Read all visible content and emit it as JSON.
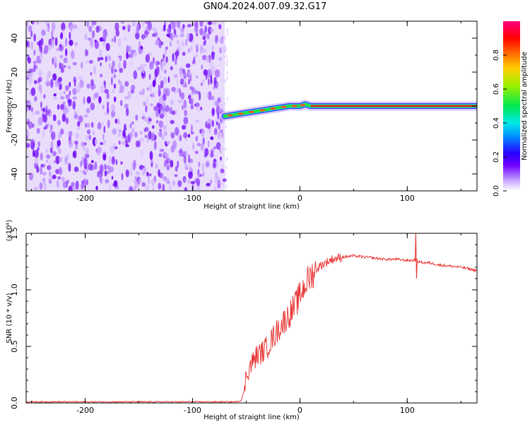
{
  "title": "GN04.2024.007.09.32.G17",
  "chart_data": [
    {
      "type": "heatmap",
      "xlabel": "Height of straight line (km)",
      "ylabel": "Frequency (Hz)",
      "xlim": [
        -255,
        165
      ],
      "ylim": [
        -50,
        50
      ],
      "xticks": [
        -200,
        -100,
        0,
        100
      ],
      "yticks": [
        -40,
        -20,
        0,
        20,
        40
      ],
      "colorbar": {
        "label": "Normalized spectral amplitude",
        "range": [
          0,
          1
        ],
        "ticks": [
          "0.0",
          "0.2",
          "0.4",
          "0.6",
          "0.8"
        ]
      },
      "noise_region_x": [
        -255,
        -70
      ],
      "tone_track": {
        "x": [
          -70,
          -60,
          -50,
          -40,
          -30,
          -20,
          -10,
          0,
          5,
          10,
          165
        ],
        "y": [
          -6,
          -5,
          -4,
          -3,
          -2,
          -1,
          0,
          0,
          1,
          0,
          0
        ]
      }
    },
    {
      "type": "line",
      "xlabel": "Height of straight line (km)",
      "ylabel": "SNR (10 * v/v)",
      "multiplier_label": "(x10⁴)",
      "xlim": [
        -255,
        165
      ],
      "ylim": [
        0,
        1.5
      ],
      "xticks": [
        -200,
        -100,
        0,
        100
      ],
      "yticks": [
        "0.0",
        "0.5",
        "1.0",
        "1.5"
      ],
      "series": [
        {
          "color": "#e83030",
          "x": [
            -255,
            -200,
            -150,
            -100,
            -60,
            -55,
            -52,
            -50,
            -45,
            -40,
            -35,
            -30,
            -25,
            -20,
            -15,
            -10,
            -5,
            0,
            5,
            10,
            15,
            20,
            30,
            40,
            50,
            60,
            70,
            80,
            90,
            100,
            105,
            108,
            110,
            115,
            120,
            130,
            140,
            150,
            160,
            165
          ],
          "y": [
            0.01,
            0.01,
            0.01,
            0.01,
            0.01,
            0.02,
            0.1,
            0.25,
            0.35,
            0.42,
            0.45,
            0.5,
            0.58,
            0.65,
            0.72,
            0.78,
            0.85,
            0.95,
            1.05,
            1.12,
            1.18,
            1.22,
            1.27,
            1.29,
            1.3,
            1.29,
            1.28,
            1.27,
            1.27,
            1.26,
            1.26,
            1.27,
            1.25,
            1.24,
            1.24,
            1.22,
            1.21,
            1.2,
            1.18,
            1.17
          ]
        }
      ]
    }
  ]
}
